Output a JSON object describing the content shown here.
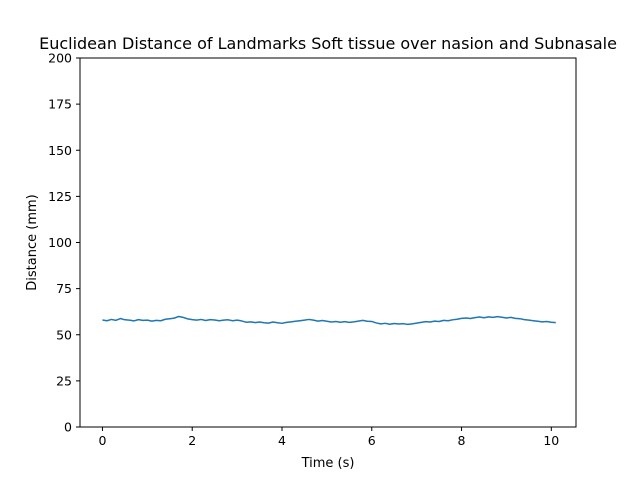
{
  "chart_data": {
    "type": "line",
    "title": "Euclidean Distance of Landmarks Soft tissue over nasion and Subnasale",
    "xlabel": "Time (s)",
    "ylabel": "Distance (mm)",
    "xlim": [
      -0.5,
      10.55
    ],
    "ylim": [
      0,
      200
    ],
    "xticks": [
      0,
      2,
      4,
      6,
      8,
      10
    ],
    "yticks": [
      0,
      25,
      50,
      75,
      100,
      125,
      150,
      175,
      200
    ],
    "grid": false,
    "legend": "none",
    "series": [
      {
        "color": "#1f77b4",
        "x": [
          0,
          0.1,
          0.2,
          0.3,
          0.4,
          0.5,
          0.6,
          0.7,
          0.8,
          0.9,
          1.0,
          1.1,
          1.2,
          1.3,
          1.4,
          1.5,
          1.6,
          1.7,
          1.8,
          1.9,
          2.0,
          2.1,
          2.2,
          2.3,
          2.4,
          2.5,
          2.6,
          2.7,
          2.8,
          2.9,
          3.0,
          3.1,
          3.2,
          3.3,
          3.4,
          3.5,
          3.6,
          3.7,
          3.8,
          3.9,
          4.0,
          4.1,
          4.2,
          4.3,
          4.4,
          4.5,
          4.6,
          4.7,
          4.8,
          4.9,
          5.0,
          5.1,
          5.2,
          5.3,
          5.4,
          5.5,
          5.6,
          5.7,
          5.8,
          5.9,
          6.0,
          6.1,
          6.2,
          6.3,
          6.4,
          6.5,
          6.6,
          6.7,
          6.8,
          6.9,
          7.0,
          7.1,
          7.2,
          7.3,
          7.4,
          7.5,
          7.6,
          7.7,
          7.8,
          7.9,
          8.0,
          8.1,
          8.2,
          8.3,
          8.4,
          8.5,
          8.6,
          8.7,
          8.8,
          8.9,
          9.0,
          9.1,
          9.2,
          9.3,
          9.4,
          9.5,
          9.6,
          9.7,
          9.8,
          9.9,
          10.0,
          10.1
        ],
        "y": [
          58.0,
          57.6,
          58.3,
          57.8,
          58.8,
          58.1,
          57.9,
          57.5,
          58.2,
          57.8,
          57.9,
          57.4,
          57.8,
          57.6,
          58.4,
          58.7,
          59.0,
          59.9,
          59.4,
          58.6,
          58.2,
          57.9,
          58.3,
          57.7,
          58.2,
          58.0,
          57.6,
          57.9,
          58.1,
          57.6,
          57.9,
          57.5,
          56.8,
          57.0,
          56.6,
          56.9,
          56.5,
          56.3,
          56.9,
          56.5,
          56.2,
          56.7,
          57.0,
          57.3,
          57.6,
          57.9,
          58.3,
          57.9,
          57.4,
          57.7,
          57.3,
          56.9,
          57.2,
          56.8,
          57.1,
          56.7,
          57.0,
          57.4,
          57.8,
          57.3,
          57.2,
          56.4,
          55.9,
          56.2,
          55.7,
          56.1,
          55.8,
          56.0,
          55.6,
          55.9,
          56.3,
          56.7,
          57.1,
          56.9,
          57.4,
          57.2,
          57.8,
          57.6,
          58.1,
          58.4,
          58.9,
          59.1,
          58.8,
          59.3,
          59.6,
          59.2,
          59.7,
          59.4,
          59.8,
          59.5,
          59.1,
          59.4,
          58.9,
          58.7,
          58.2,
          57.9,
          57.6,
          57.3,
          57.0,
          57.2,
          56.8,
          56.6
        ]
      }
    ]
  }
}
